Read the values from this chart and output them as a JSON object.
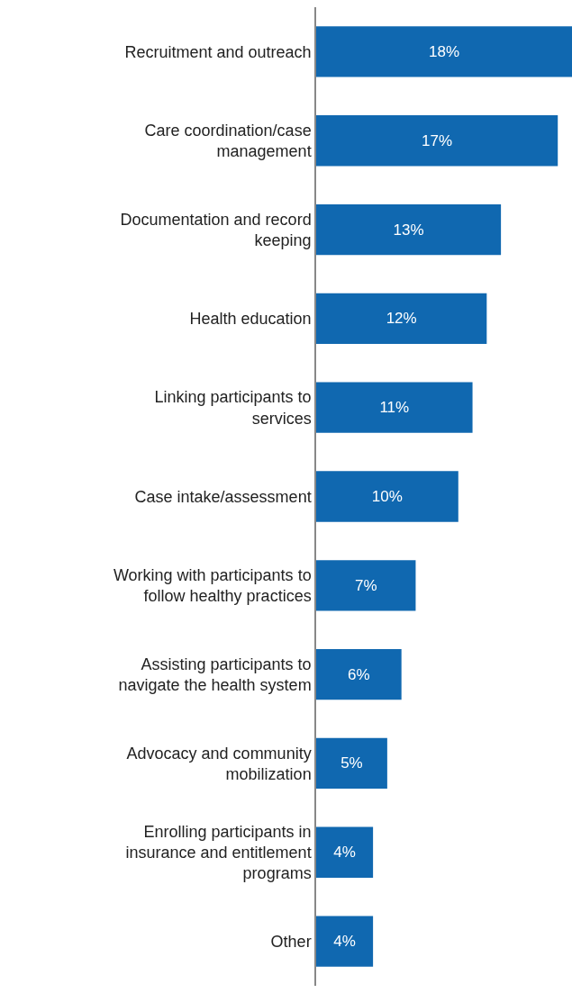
{
  "chart_data": {
    "type": "bar",
    "orientation": "horizontal",
    "categories": [
      "Recruitment and outreach",
      "Care coordination/case management",
      "Documentation and record keeping",
      "Health education",
      "Linking participants to services",
      "Case intake/assessment",
      "Working with participants to follow healthy practices",
      "Assisting participants to navigate the health system",
      "Advocacy and community mobilization",
      "Enrolling participants in insurance and entitlement programs",
      "Other"
    ],
    "values": [
      18,
      17,
      13,
      12,
      11,
      10,
      7,
      6,
      5,
      4,
      4
    ],
    "value_labels": [
      "18%",
      "17%",
      "13%",
      "12%",
      "11%",
      "10%",
      "7%",
      "6%",
      "5%",
      "4%",
      "4%"
    ],
    "color": "#1068b0",
    "xlim": [
      0,
      18
    ],
    "tick_labels": "y"
  }
}
